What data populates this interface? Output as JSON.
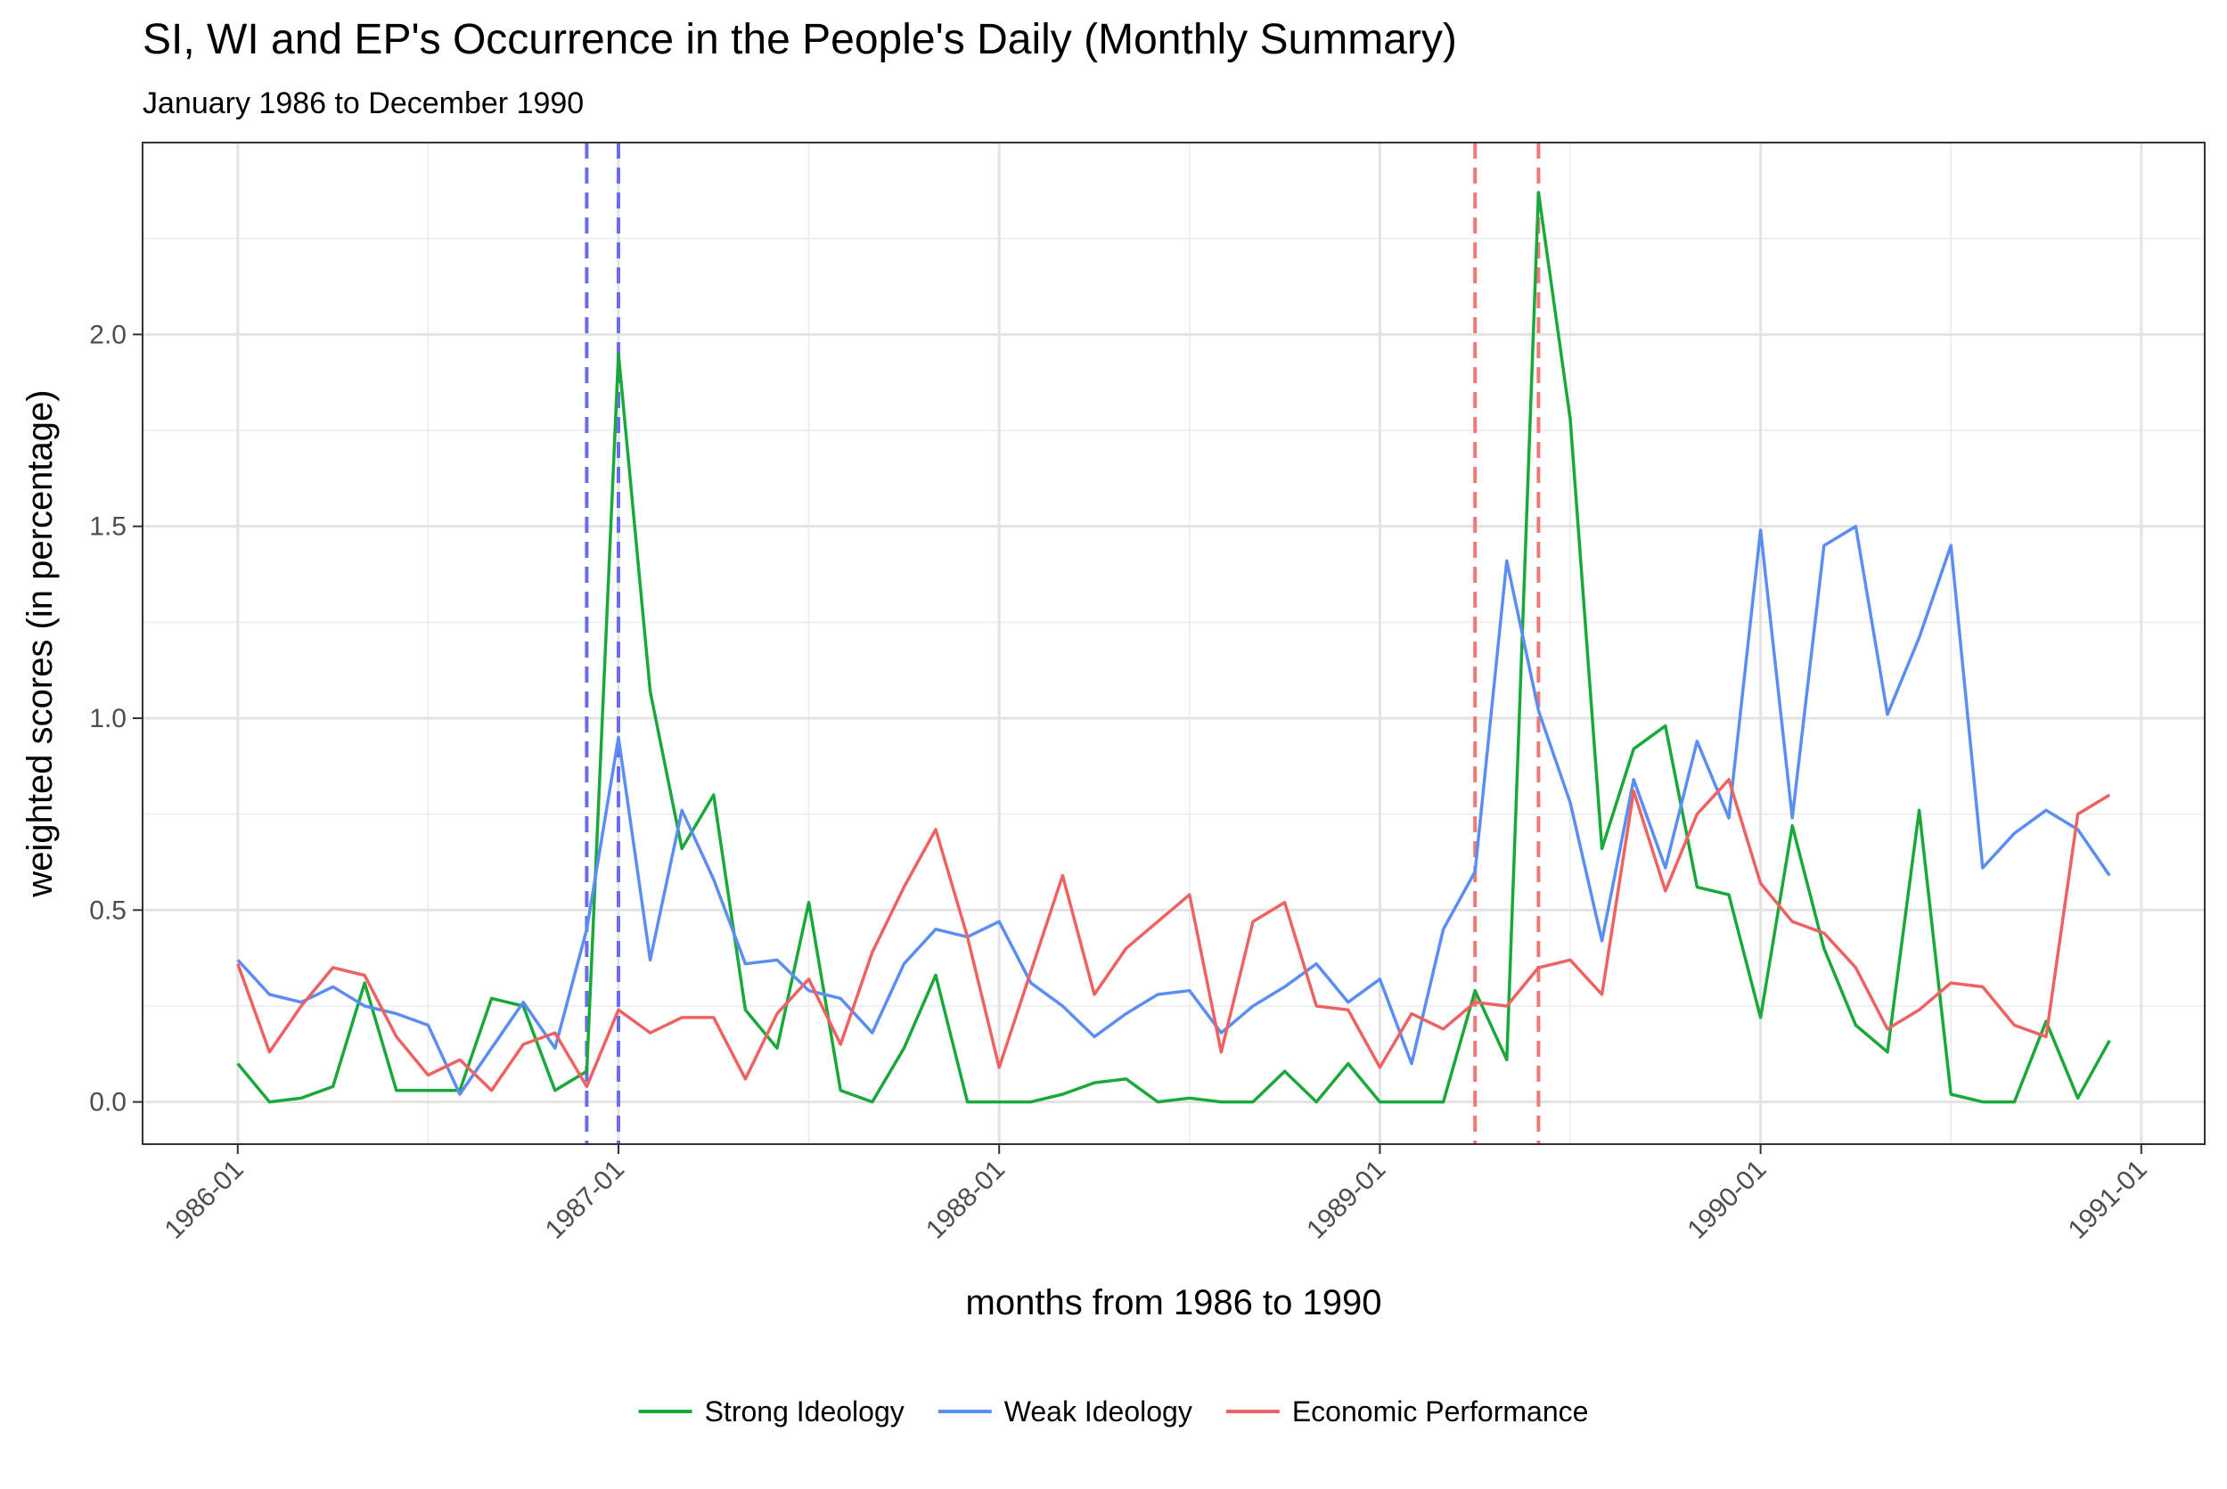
{
  "chart_data": {
    "type": "line",
    "title": "SI, WI and EP's Occurrence in the People's Daily (Monthly Summary)",
    "subtitle": "January 1986 to December 1990",
    "xlabel": "months from 1986 to 1990",
    "ylabel": "weighted scores (in percentage)",
    "x_start": "1986-01",
    "x_ticks": [
      "1986-01",
      "1987-01",
      "1988-01",
      "1989-01",
      "1990-01",
      "1991-01"
    ],
    "xlim": [
      "1985-10",
      "1991-03"
    ],
    "ylim": [
      -0.11,
      2.5
    ],
    "y_ticks": [
      0.0,
      0.5,
      1.0,
      1.5,
      2.0
    ],
    "y_tick_labels": [
      "0.0",
      "0.5",
      "1.0",
      "1.5",
      "2.0"
    ],
    "grid": true,
    "legend_position": "bottom",
    "series": [
      {
        "name": "Strong Ideology",
        "color": "#1aa83a",
        "values": [
          0.1,
          0.0,
          0.01,
          0.04,
          0.31,
          0.03,
          0.03,
          0.03,
          0.27,
          0.25,
          0.03,
          0.08,
          1.95,
          1.07,
          0.66,
          0.8,
          0.24,
          0.14,
          0.52,
          0.03,
          0.0,
          0.14,
          0.33,
          0.0,
          0.0,
          0.0,
          0.02,
          0.05,
          0.06,
          0.0,
          0.01,
          0.0,
          0.0,
          0.08,
          0.0,
          0.1,
          0.0,
          0.0,
          0.0,
          0.29,
          0.11,
          2.37,
          1.78,
          0.66,
          0.92,
          0.98,
          0.56,
          0.54,
          0.22,
          0.72,
          0.4,
          0.2,
          0.13,
          0.76,
          0.02,
          0.0,
          0.0,
          0.21,
          0.01,
          0.16
        ]
      },
      {
        "name": "Weak Ideology",
        "color": "#5b8ef5",
        "values": [
          0.37,
          0.28,
          0.26,
          0.3,
          0.25,
          0.23,
          0.2,
          0.02,
          0.14,
          0.26,
          0.14,
          0.45,
          0.95,
          0.37,
          0.76,
          0.58,
          0.36,
          0.37,
          0.29,
          0.27,
          0.18,
          0.36,
          0.45,
          0.43,
          0.47,
          0.31,
          0.25,
          0.17,
          0.23,
          0.28,
          0.29,
          0.18,
          0.25,
          0.3,
          0.36,
          0.26,
          0.32,
          0.1,
          0.45,
          0.6,
          1.41,
          1.02,
          0.78,
          0.42,
          0.84,
          0.61,
          0.94,
          0.74,
          1.49,
          0.74,
          1.45,
          1.5,
          1.01,
          1.21,
          1.45,
          0.61,
          0.7,
          0.76,
          0.71,
          0.59
        ]
      },
      {
        "name": "Economic Performance",
        "color": "#ee6262",
        "values": [
          0.36,
          0.13,
          0.25,
          0.35,
          0.33,
          0.17,
          0.07,
          0.11,
          0.03,
          0.15,
          0.18,
          0.04,
          0.24,
          0.18,
          0.22,
          0.22,
          0.06,
          0.23,
          0.32,
          0.15,
          0.39,
          0.56,
          0.71,
          0.43,
          0.09,
          0.34,
          0.59,
          0.28,
          0.4,
          0.47,
          0.54,
          0.13,
          0.47,
          0.52,
          0.25,
          0.24,
          0.09,
          0.23,
          0.19,
          0.26,
          0.25,
          0.35,
          0.37,
          0.28,
          0.81,
          0.55,
          0.75,
          0.84,
          0.57,
          0.47,
          0.44,
          0.35,
          0.19,
          0.24,
          0.31,
          0.3,
          0.2,
          0.17,
          0.75,
          0.8
        ]
      }
    ],
    "vertical_lines": [
      {
        "x": "1986-12",
        "color": "#6b6bf0"
      },
      {
        "x": "1987-01",
        "color": "#6b6bf0"
      },
      {
        "x": "1989-04",
        "color": "#f07878"
      },
      {
        "x": "1989-06",
        "color": "#f07878"
      }
    ]
  }
}
